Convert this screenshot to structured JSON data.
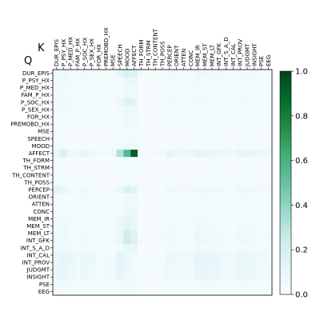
{
  "chart_data": {
    "type": "heatmap",
    "title": "",
    "xlabel": "K",
    "ylabel": "Q",
    "x_labels": [
      "DUR_EPIS",
      "P_PSY_HX",
      "P_MED_HX",
      "FAM_P_HX",
      "P_SOC_HX",
      "P_SEX_HX",
      "FOR_HX",
      "PREMOBD_HX",
      "MSE",
      "SPEECH",
      "MOOD",
      "AFFECT",
      "TH_FORM",
      "TH_STRM",
      "TH_CONTENT",
      "TH_POSS",
      "PERCEP",
      "ORIENT",
      "ATTEN",
      "CONC",
      "MEM_IR",
      "MEM_ST",
      "MEM_LT",
      "INT_GFK",
      "INT_S_A_D",
      "INT_CAL",
      "INT_PROV",
      "JUDGMT",
      "INSIGHT",
      "PSE",
      "EEG"
    ],
    "y_labels": [
      "DUR_EPIS",
      "P_PSY_HX",
      "P_MED_HX",
      "FAM_P_HX",
      "P_SOC_HX",
      "P_SEX_HX",
      "FOR_HX",
      "PREMOBD_HX",
      "MSE",
      "SPEECH",
      "MOOD",
      "AFFECT",
      "TH_FORM",
      "TH_STRM",
      "TH_CONTENT",
      "TH_POSS",
      "PERCEP",
      "ORIENT",
      "ATTEN",
      "CONC",
      "MEM_IR",
      "MEM_ST",
      "MEM_LT",
      "INT_GFK",
      "INT_S_A_D",
      "INT_CAL",
      "INT_PROV",
      "JUDGMT",
      "INSIGHT",
      "PSE",
      "EEG"
    ],
    "values": [
      [
        0.06,
        0.08,
        0.04,
        0.03,
        0.05,
        0.03,
        0.03,
        0.03,
        0.03,
        0.12,
        0.18,
        0.16,
        0.02,
        0.02,
        0.02,
        0.03,
        0.06,
        0.04,
        0.04,
        0.04,
        0.08,
        0.06,
        0.05,
        0.05,
        0.04,
        0.03,
        0.06,
        0.06,
        0.05,
        0.04,
        0.03
      ],
      [
        0.05,
        0.06,
        0.03,
        0.03,
        0.04,
        0.03,
        0.02,
        0.02,
        0.02,
        0.04,
        0.1,
        0.08,
        0.01,
        0.01,
        0.01,
        0.02,
        0.04,
        0.03,
        0.03,
        0.03,
        0.05,
        0.04,
        0.04,
        0.04,
        0.03,
        0.02,
        0.04,
        0.04,
        0.04,
        0.03,
        0.02
      ],
      [
        0.04,
        0.05,
        0.03,
        0.02,
        0.03,
        0.02,
        0.02,
        0.02,
        0.02,
        0.03,
        0.07,
        0.06,
        0.01,
        0.01,
        0.01,
        0.02,
        0.03,
        0.02,
        0.02,
        0.02,
        0.04,
        0.03,
        0.03,
        0.03,
        0.02,
        0.02,
        0.03,
        0.03,
        0.03,
        0.02,
        0.02
      ],
      [
        0.04,
        0.05,
        0.03,
        0.02,
        0.03,
        0.02,
        0.02,
        0.02,
        0.02,
        0.03,
        0.08,
        0.06,
        0.01,
        0.01,
        0.01,
        0.02,
        0.03,
        0.02,
        0.02,
        0.02,
        0.04,
        0.03,
        0.03,
        0.03,
        0.02,
        0.02,
        0.03,
        0.03,
        0.03,
        0.02,
        0.02
      ],
      [
        0.05,
        0.06,
        0.03,
        0.03,
        0.04,
        0.03,
        0.02,
        0.02,
        0.02,
        0.08,
        0.16,
        0.14,
        0.01,
        0.01,
        0.01,
        0.02,
        0.05,
        0.03,
        0.03,
        0.03,
        0.06,
        0.05,
        0.04,
        0.04,
        0.03,
        0.02,
        0.05,
        0.05,
        0.04,
        0.03,
        0.02
      ],
      [
        0.04,
        0.05,
        0.03,
        0.02,
        0.03,
        0.02,
        0.02,
        0.02,
        0.02,
        0.03,
        0.08,
        0.06,
        0.01,
        0.01,
        0.01,
        0.02,
        0.03,
        0.02,
        0.02,
        0.02,
        0.04,
        0.03,
        0.03,
        0.03,
        0.02,
        0.02,
        0.03,
        0.03,
        0.03,
        0.02,
        0.02
      ],
      [
        0.03,
        0.04,
        0.02,
        0.02,
        0.03,
        0.02,
        0.02,
        0.02,
        0.02,
        0.03,
        0.06,
        0.05,
        0.01,
        0.01,
        0.01,
        0.02,
        0.03,
        0.02,
        0.02,
        0.02,
        0.03,
        0.03,
        0.02,
        0.02,
        0.02,
        0.02,
        0.03,
        0.03,
        0.02,
        0.02,
        0.02
      ],
      [
        0.03,
        0.04,
        0.02,
        0.02,
        0.03,
        0.02,
        0.02,
        0.02,
        0.02,
        0.03,
        0.06,
        0.05,
        0.01,
        0.01,
        0.01,
        0.02,
        0.03,
        0.02,
        0.02,
        0.02,
        0.03,
        0.03,
        0.02,
        0.02,
        0.02,
        0.02,
        0.03,
        0.03,
        0.02,
        0.02,
        0.02
      ],
      [
        0.02,
        0.03,
        0.02,
        0.01,
        0.02,
        0.01,
        0.01,
        0.01,
        0.01,
        0.02,
        0.04,
        0.03,
        0.01,
        0.01,
        0.01,
        0.01,
        0.02,
        0.01,
        0.01,
        0.01,
        0.02,
        0.02,
        0.02,
        0.02,
        0.01,
        0.01,
        0.02,
        0.02,
        0.02,
        0.01,
        0.01
      ],
      [
        0.02,
        0.03,
        0.02,
        0.01,
        0.02,
        0.01,
        0.01,
        0.01,
        0.01,
        0.02,
        0.04,
        0.03,
        0.01,
        0.01,
        0.01,
        0.01,
        0.02,
        0.01,
        0.01,
        0.01,
        0.02,
        0.02,
        0.02,
        0.02,
        0.01,
        0.01,
        0.02,
        0.02,
        0.02,
        0.01,
        0.01
      ],
      [
        0.03,
        0.04,
        0.02,
        0.02,
        0.03,
        0.02,
        0.02,
        0.02,
        0.02,
        0.04,
        0.08,
        0.06,
        0.01,
        0.01,
        0.01,
        0.02,
        0.04,
        0.02,
        0.02,
        0.02,
        0.04,
        0.03,
        0.03,
        0.03,
        0.02,
        0.02,
        0.03,
        0.03,
        0.03,
        0.02,
        0.02
      ],
      [
        0.08,
        0.18,
        0.1,
        0.06,
        0.12,
        0.06,
        0.05,
        0.05,
        0.06,
        0.32,
        0.55,
        0.92,
        0.03,
        0.03,
        0.04,
        0.05,
        0.12,
        0.08,
        0.08,
        0.08,
        0.14,
        0.12,
        0.1,
        0.1,
        0.08,
        0.07,
        0.12,
        0.12,
        0.1,
        0.08,
        0.06
      ],
      [
        0.02,
        0.03,
        0.02,
        0.01,
        0.02,
        0.01,
        0.01,
        0.01,
        0.01,
        0.02,
        0.04,
        0.03,
        0.01,
        0.01,
        0.01,
        0.01,
        0.02,
        0.01,
        0.01,
        0.01,
        0.02,
        0.02,
        0.02,
        0.02,
        0.01,
        0.01,
        0.02,
        0.02,
        0.02,
        0.01,
        0.01
      ],
      [
        0.02,
        0.03,
        0.02,
        0.01,
        0.02,
        0.01,
        0.01,
        0.01,
        0.01,
        0.02,
        0.04,
        0.03,
        0.01,
        0.01,
        0.01,
        0.01,
        0.02,
        0.01,
        0.01,
        0.01,
        0.02,
        0.02,
        0.02,
        0.02,
        0.01,
        0.01,
        0.02,
        0.02,
        0.02,
        0.01,
        0.01
      ],
      [
        0.03,
        0.03,
        0.02,
        0.01,
        0.02,
        0.01,
        0.01,
        0.01,
        0.01,
        0.03,
        0.05,
        0.04,
        0.01,
        0.01,
        0.01,
        0.01,
        0.02,
        0.01,
        0.01,
        0.01,
        0.03,
        0.02,
        0.02,
        0.02,
        0.01,
        0.01,
        0.02,
        0.02,
        0.02,
        0.01,
        0.01
      ],
      [
        0.02,
        0.03,
        0.02,
        0.01,
        0.02,
        0.01,
        0.01,
        0.01,
        0.01,
        0.02,
        0.04,
        0.03,
        0.01,
        0.01,
        0.01,
        0.01,
        0.02,
        0.01,
        0.01,
        0.01,
        0.02,
        0.02,
        0.02,
        0.02,
        0.01,
        0.01,
        0.02,
        0.02,
        0.02,
        0.01,
        0.01
      ],
      [
        0.14,
        0.1,
        0.06,
        0.04,
        0.07,
        0.04,
        0.04,
        0.04,
        0.04,
        0.08,
        0.18,
        0.14,
        0.02,
        0.02,
        0.02,
        0.03,
        0.07,
        0.05,
        0.05,
        0.05,
        0.08,
        0.07,
        0.06,
        0.06,
        0.05,
        0.04,
        0.07,
        0.07,
        0.06,
        0.05,
        0.04
      ],
      [
        0.03,
        0.04,
        0.02,
        0.02,
        0.03,
        0.02,
        0.02,
        0.02,
        0.02,
        0.03,
        0.06,
        0.05,
        0.01,
        0.01,
        0.01,
        0.02,
        0.03,
        0.02,
        0.02,
        0.02,
        0.03,
        0.03,
        0.02,
        0.02,
        0.02,
        0.02,
        0.03,
        0.03,
        0.02,
        0.02,
        0.02
      ],
      [
        0.03,
        0.04,
        0.02,
        0.02,
        0.03,
        0.02,
        0.02,
        0.02,
        0.02,
        0.03,
        0.07,
        0.05,
        0.01,
        0.01,
        0.01,
        0.02,
        0.03,
        0.02,
        0.02,
        0.02,
        0.04,
        0.03,
        0.03,
        0.03,
        0.02,
        0.02,
        0.03,
        0.03,
        0.03,
        0.02,
        0.02
      ],
      [
        0.03,
        0.04,
        0.02,
        0.02,
        0.03,
        0.02,
        0.02,
        0.02,
        0.02,
        0.04,
        0.08,
        0.06,
        0.01,
        0.01,
        0.01,
        0.02,
        0.03,
        0.02,
        0.02,
        0.02,
        0.04,
        0.03,
        0.03,
        0.03,
        0.02,
        0.02,
        0.03,
        0.03,
        0.03,
        0.02,
        0.02
      ],
      [
        0.04,
        0.05,
        0.03,
        0.02,
        0.03,
        0.02,
        0.02,
        0.02,
        0.02,
        0.06,
        0.12,
        0.09,
        0.01,
        0.01,
        0.01,
        0.02,
        0.04,
        0.03,
        0.03,
        0.03,
        0.05,
        0.04,
        0.04,
        0.04,
        0.03,
        0.02,
        0.04,
        0.04,
        0.04,
        0.03,
        0.02
      ],
      [
        0.05,
        0.06,
        0.03,
        0.03,
        0.04,
        0.03,
        0.02,
        0.02,
        0.02,
        0.07,
        0.14,
        0.1,
        0.01,
        0.01,
        0.01,
        0.02,
        0.05,
        0.03,
        0.03,
        0.03,
        0.06,
        0.05,
        0.04,
        0.04,
        0.03,
        0.02,
        0.05,
        0.05,
        0.04,
        0.03,
        0.02
      ],
      [
        0.06,
        0.07,
        0.04,
        0.03,
        0.05,
        0.03,
        0.03,
        0.03,
        0.03,
        0.1,
        0.22,
        0.15,
        0.02,
        0.02,
        0.02,
        0.03,
        0.06,
        0.04,
        0.04,
        0.04,
        0.08,
        0.06,
        0.05,
        0.05,
        0.04,
        0.03,
        0.06,
        0.06,
        0.05,
        0.04,
        0.03
      ],
      [
        0.06,
        0.07,
        0.04,
        0.03,
        0.05,
        0.03,
        0.03,
        0.03,
        0.03,
        0.1,
        0.24,
        0.16,
        0.02,
        0.02,
        0.02,
        0.03,
        0.06,
        0.04,
        0.04,
        0.04,
        0.08,
        0.06,
        0.05,
        0.05,
        0.04,
        0.03,
        0.06,
        0.06,
        0.05,
        0.04,
        0.03
      ],
      [
        0.04,
        0.05,
        0.03,
        0.02,
        0.03,
        0.02,
        0.02,
        0.02,
        0.02,
        0.05,
        0.1,
        0.08,
        0.01,
        0.01,
        0.01,
        0.02,
        0.04,
        0.03,
        0.03,
        0.03,
        0.05,
        0.04,
        0.04,
        0.04,
        0.03,
        0.02,
        0.04,
        0.04,
        0.04,
        0.03,
        0.02
      ],
      [
        0.1,
        0.12,
        0.09,
        0.06,
        0.1,
        0.07,
        0.04,
        0.05,
        0.04,
        0.14,
        0.08,
        0.05,
        0.02,
        0.02,
        0.02,
        0.04,
        0.08,
        0.06,
        0.06,
        0.06,
        0.12,
        0.11,
        0.1,
        0.09,
        0.06,
        0.05,
        0.1,
        0.09,
        0.08,
        0.06,
        0.04
      ],
      [
        0.1,
        0.12,
        0.09,
        0.06,
        0.1,
        0.07,
        0.04,
        0.05,
        0.04,
        0.14,
        0.08,
        0.05,
        0.02,
        0.02,
        0.02,
        0.04,
        0.08,
        0.06,
        0.06,
        0.06,
        0.12,
        0.11,
        0.1,
        0.09,
        0.06,
        0.05,
        0.1,
        0.09,
        0.08,
        0.06,
        0.04
      ],
      [
        0.09,
        0.11,
        0.08,
        0.05,
        0.09,
        0.06,
        0.04,
        0.05,
        0.04,
        0.12,
        0.07,
        0.05,
        0.02,
        0.02,
        0.02,
        0.04,
        0.07,
        0.05,
        0.05,
        0.05,
        0.11,
        0.1,
        0.09,
        0.08,
        0.05,
        0.05,
        0.09,
        0.08,
        0.07,
        0.05,
        0.04
      ],
      [
        0.09,
        0.11,
        0.08,
        0.05,
        0.09,
        0.06,
        0.04,
        0.05,
        0.04,
        0.12,
        0.07,
        0.05,
        0.02,
        0.02,
        0.02,
        0.04,
        0.07,
        0.05,
        0.05,
        0.05,
        0.11,
        0.1,
        0.09,
        0.08,
        0.05,
        0.05,
        0.09,
        0.08,
        0.07,
        0.05,
        0.04
      ],
      [
        0.04,
        0.05,
        0.03,
        0.02,
        0.03,
        0.02,
        0.02,
        0.02,
        0.02,
        0.04,
        0.06,
        0.05,
        0.01,
        0.01,
        0.01,
        0.02,
        0.03,
        0.02,
        0.02,
        0.02,
        0.04,
        0.03,
        0.03,
        0.03,
        0.02,
        0.02,
        0.03,
        0.03,
        0.03,
        0.02,
        0.02
      ],
      [
        0.03,
        0.04,
        0.02,
        0.02,
        0.03,
        0.02,
        0.02,
        0.02,
        0.02,
        0.03,
        0.05,
        0.04,
        0.01,
        0.01,
        0.01,
        0.02,
        0.03,
        0.02,
        0.02,
        0.02,
        0.03,
        0.03,
        0.02,
        0.02,
        0.02,
        0.02,
        0.03,
        0.03,
        0.02,
        0.02,
        0.02
      ]
    ],
    "vmin": 0.0,
    "vmax": 1.0,
    "colorbar_ticks": [
      "0.0",
      "0.2",
      "0.4",
      "0.6",
      "0.8",
      "1.0"
    ],
    "colormap": [
      "#f7fcfd",
      "#e5f5f9",
      "#ccece6",
      "#99d8c9",
      "#66c2a4",
      "#41ae76",
      "#238b45",
      "#006d2c",
      "#00441b"
    ]
  }
}
